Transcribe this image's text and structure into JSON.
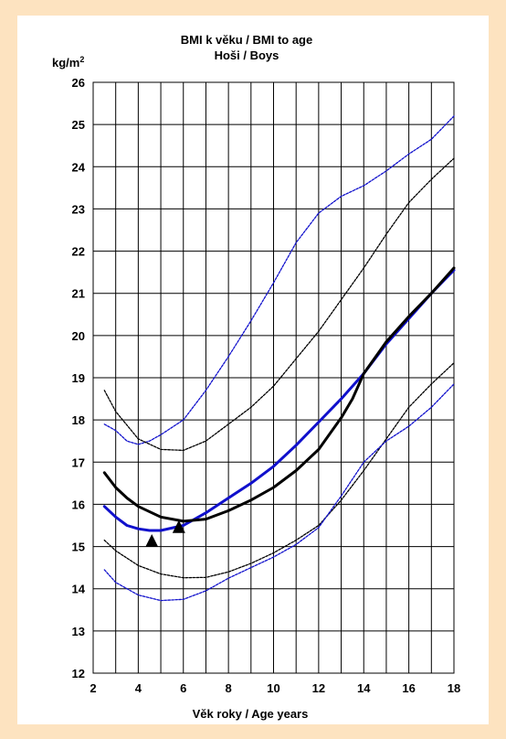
{
  "chart_data": {
    "type": "line",
    "title": "BMI k věku / BMI to age",
    "subtitle": "Hoši / Boys",
    "xlabel": "Věk roky / Age years",
    "ylabel_unit_base": "kg/m",
    "ylabel_unit_exp": "2",
    "xlim": [
      2,
      18
    ],
    "ylim": [
      12,
      26
    ],
    "grid": true,
    "x_ticks": [
      2,
      4,
      6,
      8,
      10,
      12,
      14,
      16,
      18
    ],
    "y_ticks": [
      12,
      13,
      14,
      15,
      16,
      17,
      18,
      19,
      20,
      21,
      22,
      23,
      24,
      25,
      26
    ],
    "x_minor_gridlines": [
      3,
      5,
      7,
      9,
      11,
      13,
      15,
      17
    ],
    "series": [
      {
        "color": "#1010cc",
        "style": "dashed-thin",
        "points": [
          [
            2.5,
            17.9
          ],
          [
            3,
            17.75
          ],
          [
            3.5,
            17.5
          ],
          [
            4,
            17.42
          ],
          [
            4.5,
            17.5
          ],
          [
            5,
            17.65
          ],
          [
            6,
            18.0
          ],
          [
            7,
            18.7
          ],
          [
            8,
            19.5
          ],
          [
            9,
            20.35
          ],
          [
            10,
            21.25
          ],
          [
            11,
            22.2
          ],
          [
            12,
            22.9
          ],
          [
            13,
            23.3
          ],
          [
            14,
            23.55
          ],
          [
            15,
            23.9
          ],
          [
            16,
            24.3
          ],
          [
            17,
            24.65
          ],
          [
            18,
            25.2
          ]
        ]
      },
      {
        "color": "#000000",
        "style": "dashed-thin",
        "points": [
          [
            2.5,
            18.7
          ],
          [
            3,
            18.2
          ],
          [
            4,
            17.55
          ],
          [
            5,
            17.3
          ],
          [
            6,
            17.28
          ],
          [
            7,
            17.5
          ],
          [
            8,
            17.9
          ],
          [
            9,
            18.3
          ],
          [
            10,
            18.8
          ],
          [
            11,
            19.45
          ],
          [
            12,
            20.1
          ],
          [
            13,
            20.85
          ],
          [
            14,
            21.6
          ],
          [
            15,
            22.4
          ],
          [
            16,
            23.15
          ],
          [
            17,
            23.7
          ],
          [
            18,
            24.2
          ]
        ]
      },
      {
        "color": "#1010cc",
        "style": "thick",
        "points": [
          [
            2.5,
            15.95
          ],
          [
            3,
            15.7
          ],
          [
            3.5,
            15.5
          ],
          [
            4,
            15.42
          ],
          [
            4.5,
            15.38
          ],
          [
            5,
            15.38
          ],
          [
            6,
            15.5
          ],
          [
            7,
            15.8
          ],
          [
            8,
            16.15
          ],
          [
            9,
            16.5
          ],
          [
            10,
            16.9
          ],
          [
            11,
            17.4
          ],
          [
            12,
            17.95
          ],
          [
            13,
            18.5
          ],
          [
            14,
            19.1
          ],
          [
            15,
            19.8
          ],
          [
            16,
            20.4
          ],
          [
            17,
            21.0
          ],
          [
            18,
            21.55
          ]
        ]
      },
      {
        "color": "#000000",
        "style": "thick",
        "points": [
          [
            2.5,
            16.75
          ],
          [
            3,
            16.4
          ],
          [
            3.5,
            16.15
          ],
          [
            4,
            15.95
          ],
          [
            5,
            15.7
          ],
          [
            6,
            15.6
          ],
          [
            7,
            15.65
          ],
          [
            8,
            15.85
          ],
          [
            9,
            16.1
          ],
          [
            10,
            16.4
          ],
          [
            11,
            16.8
          ],
          [
            12,
            17.3
          ],
          [
            13,
            18.05
          ],
          [
            13.5,
            18.5
          ],
          [
            14,
            19.1
          ],
          [
            15,
            19.85
          ],
          [
            16,
            20.45
          ],
          [
            17,
            21.0
          ],
          [
            18,
            21.6
          ]
        ]
      },
      {
        "color": "#000000",
        "style": "dashed-thin",
        "points": [
          [
            2.5,
            15.15
          ],
          [
            3,
            14.9
          ],
          [
            4,
            14.55
          ],
          [
            5,
            14.35
          ],
          [
            6,
            14.26
          ],
          [
            7,
            14.27
          ],
          [
            8,
            14.4
          ],
          [
            9,
            14.6
          ],
          [
            10,
            14.85
          ],
          [
            11,
            15.15
          ],
          [
            12,
            15.5
          ],
          [
            13,
            16.1
          ],
          [
            14,
            16.8
          ],
          [
            15,
            17.55
          ],
          [
            16,
            18.3
          ],
          [
            17,
            18.85
          ],
          [
            18,
            19.35
          ]
        ]
      },
      {
        "color": "#1010cc",
        "style": "dashed-thin",
        "points": [
          [
            2.5,
            14.45
          ],
          [
            3,
            14.15
          ],
          [
            4,
            13.85
          ],
          [
            5,
            13.72
          ],
          [
            6,
            13.75
          ],
          [
            7,
            13.95
          ],
          [
            8,
            14.25
          ],
          [
            9,
            14.5
          ],
          [
            10,
            14.75
          ],
          [
            11,
            15.05
          ],
          [
            12,
            15.45
          ],
          [
            13,
            16.2
          ],
          [
            14,
            17.0
          ],
          [
            15,
            17.5
          ],
          [
            16,
            17.85
          ],
          [
            17,
            18.3
          ],
          [
            18,
            18.85
          ]
        ]
      }
    ],
    "markers": [
      {
        "x": 4.6,
        "y": 15.12,
        "shape": "triangle",
        "color": "#000000"
      },
      {
        "x": 5.8,
        "y": 15.45,
        "shape": "triangle",
        "color": "#000000"
      }
    ]
  }
}
